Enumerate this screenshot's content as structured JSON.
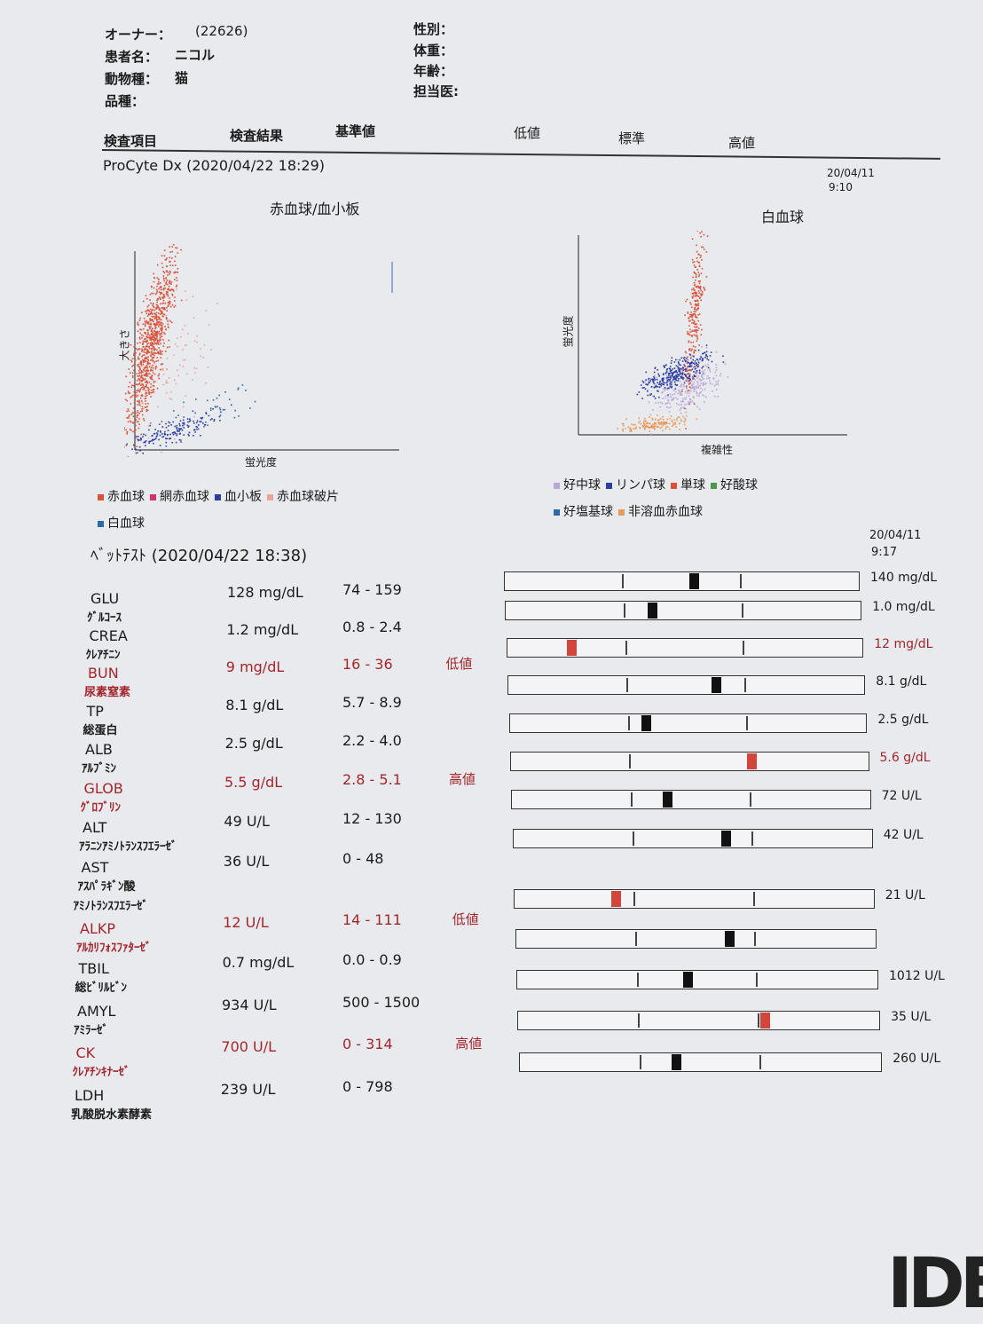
{
  "patient": {
    "owner_label": "オーナー：",
    "owner_value": "(22626)",
    "name_label": "患者名：",
    "name_value": "ニコル",
    "species_label": "動物種：",
    "species_value": "猫",
    "breed_label": "品種：",
    "sex_label": "性別：",
    "weight_label": "体重：",
    "age_label": "年齢：",
    "doctor_label": "担当医:"
  },
  "columns": {
    "item": "検査項目",
    "result": "検査結果",
    "reference": "基準値",
    "low": "低値",
    "normal": "標準",
    "high": "高値"
  },
  "procyte": {
    "title": "ProCyte Dx (2020/04/22 18:29)",
    "prev_date": "20/04/11",
    "prev_time": "9:10",
    "rbc_plot": {
      "title": "赤血球/血小板",
      "ylabel": "大きさ",
      "xlabel": "蛍光度",
      "legend": [
        {
          "label": "赤血球",
          "color": "#d9523a"
        },
        {
          "label": "網赤血球",
          "color": "#d6336c"
        },
        {
          "label": "血小板",
          "color": "#2a3fa0"
        },
        {
          "label": "赤血球破片",
          "color": "#e8a69a"
        },
        {
          "label": "白血球",
          "color": "#2d6aa8"
        }
      ]
    },
    "wbc_plot": {
      "title": "白血球",
      "ylabel": "蛍光度",
      "xlabel": "複雑性",
      "legend": [
        {
          "label": "好中球",
          "color": "#b8a8d8"
        },
        {
          "label": "リンパ球",
          "color": "#2a3fa0"
        },
        {
          "label": "単球",
          "color": "#d9523a"
        },
        {
          "label": "好酸球",
          "color": "#4a9a4a"
        },
        {
          "label": "好塩基球",
          "color": "#2d6aa8"
        },
        {
          "label": "非溶血赤血球",
          "color": "#e89a5a"
        }
      ]
    }
  },
  "chem": {
    "title": "ﾍﾞｯﾄﾃｽﾄ (2020/04/22 18:38)",
    "prev_date": "20/04/11",
    "prev_time": "9:17",
    "rows": [
      {
        "code": "GLU",
        "jp": "ｸﾞﾙｺｰｽ",
        "result": "128 mg/dL",
        "range": "74 - 159",
        "flag": "",
        "marker": 0.53,
        "prev": "140 mg/dL",
        "prev_flag": false
      },
      {
        "code": "CREA",
        "jp": "ｸﾚｱﾁﾆﾝ",
        "result": "1.2 mg/dL",
        "range": "0.8 - 2.4",
        "flag": "",
        "marker": 0.41,
        "prev": "1.0 mg/dL",
        "prev_flag": false
      },
      {
        "code": "BUN",
        "jp": "尿素窒素",
        "result": "9 mg/dL",
        "range": "16 - 36",
        "flag": "低値",
        "marker": 0.18,
        "prev": "12 mg/dL",
        "prev_flag": true
      },
      {
        "code": "TP",
        "jp": "総蛋白",
        "result": "8.1 g/dL",
        "range": "5.7 - 8.9",
        "flag": "",
        "marker": 0.58,
        "prev": "8.1 g/dL",
        "prev_flag": false
      },
      {
        "code": "ALB",
        "jp": "ｱﾙﾌﾞﾐﾝ",
        "result": "2.5 g/dL",
        "range": "2.2 - 4.0",
        "flag": "",
        "marker": 0.38,
        "prev": "2.5 g/dL",
        "prev_flag": false
      },
      {
        "code": "GLOB",
        "jp": "ｸﾞﾛﾌﾞﾘﾝ",
        "result": "5.5 g/dL",
        "range": "2.8 - 5.1",
        "flag": "高値",
        "marker": 0.67,
        "prev": "5.6 g/dL",
        "prev_flag": true
      },
      {
        "code": "ALT",
        "jp": "ｱﾗﾆﾝｱﾐﾉﾄﾗﾝｽﾌｴﾗｰｾﾞ",
        "result": "49 U/L",
        "range": "12 - 130",
        "flag": "",
        "marker": 0.43,
        "prev": "72 U/L",
        "prev_flag": false
      },
      {
        "code": "AST",
        "jp": "ｱｽﾊﾟﾗｷﾞﾝ酸",
        "jp2": "ｱﾐﾉﾄﾗﾝｽﾌｴﾗｰｾﾞ",
        "result": "36 U/L",
        "range": "0 - 48",
        "flag": "",
        "marker": 0.59,
        "prev": "42 U/L",
        "prev_flag": false
      },
      {
        "code": "ALKP",
        "jp": "ｱﾙｶﾘﾌｫｽﾌｧﾀｰｾﾞ",
        "result": "12 U/L",
        "range": "14 - 111",
        "flag": "低値",
        "marker": 0.28,
        "prev": "21 U/L",
        "prev_flag": false
      },
      {
        "code": "TBIL",
        "jp": "総ﾋﾞﾘﾙﾋﾞﾝ",
        "result": "0.7 mg/dL",
        "range": "0.0 - 0.9",
        "flag": "",
        "marker": 0.59,
        "prev": "",
        "prev_flag": false
      },
      {
        "code": "AMYL",
        "jp": "ｱﾐﾗｰｾﾞ",
        "result": "934 U/L",
        "range": "500 - 1500",
        "flag": "",
        "marker": 0.47,
        "prev": "1012 U/L",
        "prev_flag": false
      },
      {
        "code": "CK",
        "jp": "ｸﾚｱﾁﾝｷﾅｰｾﾞ",
        "result": "700 U/L",
        "range": "0 - 314",
        "flag": "高値",
        "marker": 0.68,
        "prev": "35 U/L",
        "prev_flag": false
      },
      {
        "code": "LDH",
        "jp": "乳酸脱水素酵素",
        "result": "239 U/L",
        "range": "0 - 798",
        "flag": "",
        "marker": 0.43,
        "prev": "260 U/L",
        "prev_flag": false
      }
    ]
  },
  "colors": {
    "flag_red": "#a3262c",
    "marker_black": "#111111",
    "marker_red": "#d2453a"
  },
  "logo": "IDE"
}
